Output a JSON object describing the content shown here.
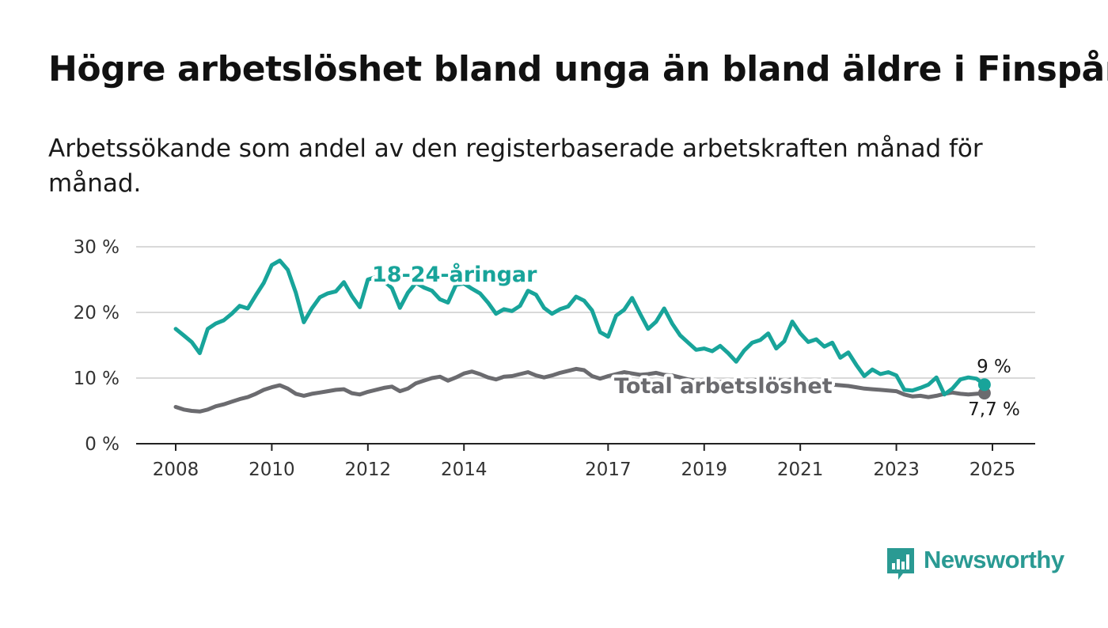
{
  "title": "Högre arbetslöshet bland unga än bland äldre i Finspång",
  "subtitle": "Arbetssökande som andel av den registerbaserade arbetskraften månad för månad.",
  "brand": {
    "name": "Newsworthy",
    "color": "#2a9a93"
  },
  "chart_data": {
    "type": "line",
    "title": "Högre arbetslöshet bland unga än bland äldre i Finspång",
    "subtitle": "Arbetssökande som andel av den registerbaserade arbetskraften månad för månad.",
    "xlabel": "",
    "ylabel": "",
    "x_ticks": [
      "2008",
      "2010",
      "2012",
      "2014",
      "2017",
      "2019",
      "2021",
      "2023",
      "2025"
    ],
    "y_ticks": [
      "0 %",
      "10 %",
      "20 %",
      "30 %"
    ],
    "ylim": [
      0,
      30
    ],
    "grid": true,
    "legend": "direct labels on lines",
    "series": [
      {
        "name": "18-24-åringar",
        "color": "#18a49a",
        "end_label": "9 %",
        "points": [
          [
            "2008-01",
            17.5
          ],
          [
            "2008-03",
            16.5
          ],
          [
            "2008-05",
            15.5
          ],
          [
            "2008-07",
            13.8
          ],
          [
            "2008-09",
            17.5
          ],
          [
            "2008-11",
            18.3
          ],
          [
            "2009-01",
            18.8
          ],
          [
            "2009-03",
            19.8
          ],
          [
            "2009-05",
            21.0
          ],
          [
            "2009-07",
            20.6
          ],
          [
            "2009-09",
            22.6
          ],
          [
            "2009-11",
            24.5
          ],
          [
            "2010-01",
            27.2
          ],
          [
            "2010-03",
            27.9
          ],
          [
            "2010-05",
            26.5
          ],
          [
            "2010-07",
            23.0
          ],
          [
            "2010-09",
            18.5
          ],
          [
            "2010-11",
            20.6
          ],
          [
            "2011-01",
            22.3
          ],
          [
            "2011-03",
            22.9
          ],
          [
            "2011-05",
            23.2
          ],
          [
            "2011-07",
            24.6
          ],
          [
            "2011-09",
            22.5
          ],
          [
            "2011-11",
            20.8
          ],
          [
            "2012-01",
            25.0
          ],
          [
            "2012-03",
            25.4
          ],
          [
            "2012-05",
            24.8
          ],
          [
            "2012-07",
            23.7
          ],
          [
            "2012-09",
            20.7
          ],
          [
            "2012-11",
            23.0
          ],
          [
            "2013-01",
            24.5
          ],
          [
            "2013-03",
            23.8
          ],
          [
            "2013-05",
            23.3
          ],
          [
            "2013-07",
            22.0
          ],
          [
            "2013-09",
            21.5
          ],
          [
            "2013-11",
            24.2
          ],
          [
            "2014-01",
            24.4
          ],
          [
            "2014-03",
            23.6
          ],
          [
            "2014-05",
            22.9
          ],
          [
            "2014-07",
            21.5
          ],
          [
            "2014-09",
            19.8
          ],
          [
            "2014-11",
            20.5
          ],
          [
            "2015-01",
            20.2
          ],
          [
            "2015-03",
            21.0
          ],
          [
            "2015-05",
            23.3
          ],
          [
            "2015-07",
            22.7
          ],
          [
            "2015-09",
            20.7
          ],
          [
            "2015-11",
            19.8
          ],
          [
            "2016-01",
            20.5
          ],
          [
            "2016-03",
            20.9
          ],
          [
            "2016-05",
            22.4
          ],
          [
            "2016-07",
            21.8
          ],
          [
            "2016-09",
            20.3
          ],
          [
            "2016-11",
            17.0
          ],
          [
            "2017-01",
            16.3
          ],
          [
            "2017-03",
            19.5
          ],
          [
            "2017-05",
            20.4
          ],
          [
            "2017-07",
            22.2
          ],
          [
            "2017-09",
            19.8
          ],
          [
            "2017-11",
            17.5
          ],
          [
            "2018-01",
            18.6
          ],
          [
            "2018-03",
            20.6
          ],
          [
            "2018-05",
            18.3
          ],
          [
            "2018-07",
            16.5
          ],
          [
            "2018-09",
            15.4
          ],
          [
            "2018-11",
            14.3
          ],
          [
            "2019-01",
            14.5
          ],
          [
            "2019-03",
            14.1
          ],
          [
            "2019-05",
            14.9
          ],
          [
            "2019-07",
            13.8
          ],
          [
            "2019-09",
            12.5
          ],
          [
            "2019-11",
            14.2
          ],
          [
            "2020-01",
            15.4
          ],
          [
            "2020-03",
            15.8
          ],
          [
            "2020-05",
            16.8
          ],
          [
            "2020-07",
            14.5
          ],
          [
            "2020-09",
            15.6
          ],
          [
            "2020-11",
            18.6
          ],
          [
            "2021-01",
            16.8
          ],
          [
            "2021-03",
            15.5
          ],
          [
            "2021-05",
            15.9
          ],
          [
            "2021-07",
            14.8
          ],
          [
            "2021-09",
            15.4
          ],
          [
            "2021-11",
            13.1
          ],
          [
            "2022-01",
            13.9
          ],
          [
            "2022-03",
            12.0
          ],
          [
            "2022-05",
            10.3
          ],
          [
            "2022-07",
            11.3
          ],
          [
            "2022-09",
            10.6
          ],
          [
            "2022-11",
            10.9
          ],
          [
            "2023-01",
            10.4
          ],
          [
            "2023-03",
            8.2
          ],
          [
            "2023-05",
            8.1
          ],
          [
            "2023-07",
            8.5
          ],
          [
            "2023-09",
            9.0
          ],
          [
            "2023-11",
            10.1
          ],
          [
            "2024-01",
            7.5
          ],
          [
            "2024-03",
            8.4
          ],
          [
            "2024-05",
            9.8
          ],
          [
            "2024-07",
            10.1
          ],
          [
            "2024-09",
            9.9
          ],
          [
            "2024-11",
            9.0
          ]
        ]
      },
      {
        "name": "Total arbetslöshet",
        "color": "#6b6b6f",
        "end_label": "7,7 %",
        "points": [
          [
            "2008-01",
            5.6
          ],
          [
            "2008-03",
            5.2
          ],
          [
            "2008-05",
            5.0
          ],
          [
            "2008-07",
            4.9
          ],
          [
            "2008-09",
            5.2
          ],
          [
            "2008-11",
            5.7
          ],
          [
            "2009-01",
            6.0
          ],
          [
            "2009-03",
            6.4
          ],
          [
            "2009-05",
            6.8
          ],
          [
            "2009-07",
            7.1
          ],
          [
            "2009-09",
            7.6
          ],
          [
            "2009-11",
            8.2
          ],
          [
            "2010-01",
            8.6
          ],
          [
            "2010-03",
            8.9
          ],
          [
            "2010-05",
            8.4
          ],
          [
            "2010-07",
            7.6
          ],
          [
            "2010-09",
            7.3
          ],
          [
            "2010-11",
            7.6
          ],
          [
            "2011-01",
            7.8
          ],
          [
            "2011-03",
            8.0
          ],
          [
            "2011-05",
            8.2
          ],
          [
            "2011-07",
            8.3
          ],
          [
            "2011-09",
            7.7
          ],
          [
            "2011-11",
            7.5
          ],
          [
            "2012-01",
            7.9
          ],
          [
            "2012-03",
            8.2
          ],
          [
            "2012-05",
            8.5
          ],
          [
            "2012-07",
            8.7
          ],
          [
            "2012-09",
            8.0
          ],
          [
            "2012-11",
            8.4
          ],
          [
            "2013-01",
            9.2
          ],
          [
            "2013-03",
            9.6
          ],
          [
            "2013-05",
            10.0
          ],
          [
            "2013-07",
            10.2
          ],
          [
            "2013-09",
            9.6
          ],
          [
            "2013-11",
            10.1
          ],
          [
            "2014-01",
            10.7
          ],
          [
            "2014-03",
            11.0
          ],
          [
            "2014-05",
            10.6
          ],
          [
            "2014-07",
            10.1
          ],
          [
            "2014-09",
            9.8
          ],
          [
            "2014-11",
            10.2
          ],
          [
            "2015-01",
            10.3
          ],
          [
            "2015-03",
            10.6
          ],
          [
            "2015-05",
            10.9
          ],
          [
            "2015-07",
            10.4
          ],
          [
            "2015-09",
            10.1
          ],
          [
            "2015-11",
            10.4
          ],
          [
            "2016-01",
            10.8
          ],
          [
            "2016-03",
            11.1
          ],
          [
            "2016-05",
            11.4
          ],
          [
            "2016-07",
            11.2
          ],
          [
            "2016-09",
            10.3
          ],
          [
            "2016-11",
            9.9
          ],
          [
            "2017-01",
            10.3
          ],
          [
            "2017-03",
            10.6
          ],
          [
            "2017-05",
            10.9
          ],
          [
            "2017-07",
            10.7
          ],
          [
            "2017-09",
            10.5
          ],
          [
            "2017-11",
            10.6
          ],
          [
            "2018-01",
            10.8
          ],
          [
            "2018-03",
            10.5
          ],
          [
            "2018-05",
            10.4
          ],
          [
            "2018-07",
            10.1
          ],
          [
            "2018-09",
            9.8
          ],
          [
            "2018-11",
            9.6
          ],
          [
            "2019-01",
            9.7
          ],
          [
            "2019-03",
            9.5
          ],
          [
            "2019-05",
            9.4
          ],
          [
            "2019-07",
            9.5
          ],
          [
            "2019-09",
            9.3
          ],
          [
            "2019-11",
            9.4
          ],
          [
            "2020-01",
            9.6
          ],
          [
            "2020-03",
            9.8
          ],
          [
            "2020-05",
            10.0
          ],
          [
            "2020-07",
            9.7
          ],
          [
            "2020-09",
            9.6
          ],
          [
            "2020-11",
            9.8
          ],
          [
            "2021-01",
            9.5
          ],
          [
            "2021-03",
            9.3
          ],
          [
            "2021-05",
            9.2
          ],
          [
            "2021-07",
            9.1
          ],
          [
            "2021-09",
            9.0
          ],
          [
            "2021-11",
            8.9
          ],
          [
            "2022-01",
            8.8
          ],
          [
            "2022-03",
            8.6
          ],
          [
            "2022-05",
            8.4
          ],
          [
            "2022-07",
            8.3
          ],
          [
            "2022-09",
            8.2
          ],
          [
            "2022-11",
            8.1
          ],
          [
            "2023-01",
            8.0
          ],
          [
            "2023-03",
            7.5
          ],
          [
            "2023-05",
            7.2
          ],
          [
            "2023-07",
            7.3
          ],
          [
            "2023-09",
            7.1
          ],
          [
            "2023-11",
            7.3
          ],
          [
            "2024-01",
            7.6
          ],
          [
            "2024-03",
            7.8
          ],
          [
            "2024-05",
            7.6
          ],
          [
            "2024-07",
            7.5
          ],
          [
            "2024-09",
            7.6
          ],
          [
            "2024-11",
            7.7
          ]
        ]
      }
    ]
  }
}
